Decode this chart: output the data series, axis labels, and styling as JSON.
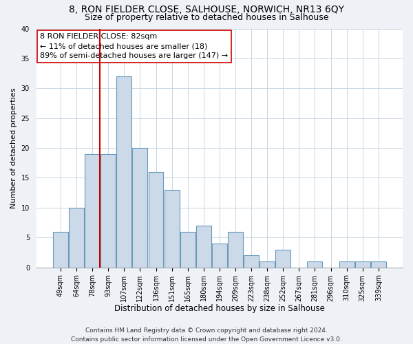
{
  "title": "8, RON FIELDER CLOSE, SALHOUSE, NORWICH, NR13 6QY",
  "subtitle": "Size of property relative to detached houses in Salhouse",
  "xlabel": "Distribution of detached houses by size in Salhouse",
  "ylabel": "Number of detached properties",
  "bar_labels": [
    "49sqm",
    "64sqm",
    "78sqm",
    "93sqm",
    "107sqm",
    "122sqm",
    "136sqm",
    "151sqm",
    "165sqm",
    "180sqm",
    "194sqm",
    "209sqm",
    "223sqm",
    "238sqm",
    "252sqm",
    "267sqm",
    "281sqm",
    "296sqm",
    "310sqm",
    "325sqm",
    "339sqm"
  ],
  "bar_values": [
    6,
    10,
    19,
    19,
    32,
    20,
    16,
    13,
    6,
    7,
    4,
    6,
    2,
    1,
    3,
    0,
    1,
    0,
    1,
    1,
    1
  ],
  "bar_color": "#ccd9e8",
  "bar_edgecolor": "#6699bb",
  "subject_label": "8 RON FIELDER CLOSE: 82sqm",
  "annotation_line1": "← 11% of detached houses are smaller (18)",
  "annotation_line2": "89% of semi-detached houses are larger (147) →",
  "vline_color": "#cc0000",
  "vline_bin_index": 2.48,
  "annotation_box_color": "#ffffff",
  "annotation_box_edgecolor": "#cc0000",
  "ylim": [
    0,
    40
  ],
  "yticks": [
    0,
    5,
    10,
    15,
    20,
    25,
    30,
    35,
    40
  ],
  "footer_line1": "Contains HM Land Registry data © Crown copyright and database right 2024.",
  "footer_line2": "Contains public sector information licensed under the Open Government Licence v3.0.",
  "background_color": "#eef2f7",
  "plot_background_color": "#ffffff",
  "grid_color": "#c8d4e0",
  "title_fontsize": 10,
  "subtitle_fontsize": 9,
  "xlabel_fontsize": 8.5,
  "ylabel_fontsize": 8,
  "tick_fontsize": 7,
  "annotation_fontsize": 8,
  "footer_fontsize": 6.5
}
